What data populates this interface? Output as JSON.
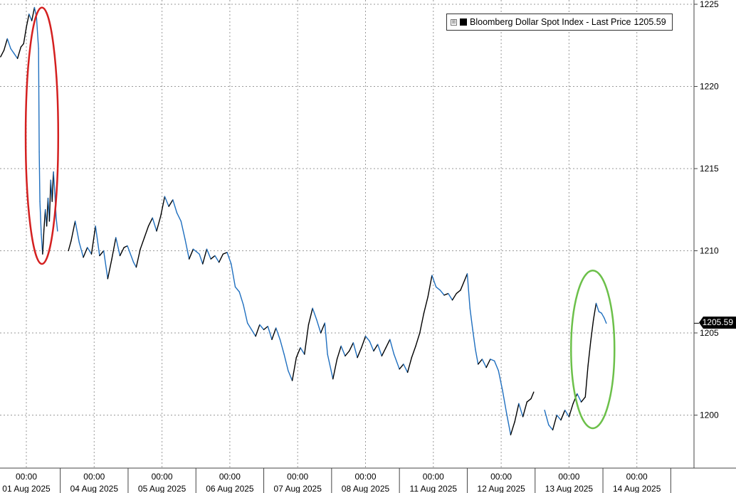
{
  "chart_data": {
    "type": "line",
    "title": "",
    "xlabel": "",
    "ylabel": "",
    "ylim": [
      1197.5,
      1225
    ],
    "y_ticks": [
      1200,
      1205,
      1210,
      1215,
      1220,
      1225
    ],
    "grid": true,
    "legend_position": "top-right",
    "x_ticks": [
      {
        "time": "00:00",
        "date": "01 Aug 2025"
      },
      {
        "time": "00:00",
        "date": "04 Aug 2025"
      },
      {
        "time": "00:00",
        "date": "05 Aug 2025"
      },
      {
        "time": "00:00",
        "date": "06 Aug 2025"
      },
      {
        "time": "00:00",
        "date": "07 Aug 2025"
      },
      {
        "time": "00:00",
        "date": "08 Aug 2025"
      },
      {
        "time": "00:00",
        "date": "11 Aug 2025"
      },
      {
        "time": "00:00",
        "date": "12 Aug 2025"
      },
      {
        "time": "00:00",
        "date": "13 Aug 2025"
      },
      {
        "time": "00:00",
        "date": "14 Aug 2025"
      }
    ],
    "series": [
      {
        "name": "Bloomberg Dollar Spot Index",
        "legend_label": "Bloomberg Dollar Spot Index - Last Price",
        "last_value": "1205.59",
        "color": "#000000",
        "down_color": "#1f6fbf",
        "points": [
          [
            -0.38,
            1221.8
          ],
          [
            -0.33,
            1222.2
          ],
          [
            -0.28,
            1222.9
          ],
          [
            -0.23,
            1222.3
          ],
          [
            -0.18,
            1222.0
          ],
          [
            -0.13,
            1221.7
          ],
          [
            -0.08,
            1222.4
          ],
          [
            -0.04,
            1222.6
          ],
          [
            0.0,
            1223.6
          ],
          [
            0.04,
            1224.4
          ],
          [
            0.08,
            1224.0
          ],
          [
            0.12,
            1224.8
          ],
          [
            0.15,
            1224.2
          ],
          [
            0.18,
            1222.3
          ],
          [
            0.19,
            1216.0
          ],
          [
            0.2,
            1213.0
          ],
          [
            0.22,
            1211.0
          ],
          [
            0.24,
            1209.8
          ],
          [
            0.26,
            1211.3
          ],
          [
            0.28,
            1212.5
          ],
          [
            0.3,
            1211.5
          ],
          [
            0.32,
            1213.2
          ],
          [
            0.34,
            1211.8
          ],
          [
            0.36,
            1214.3
          ],
          [
            0.38,
            1213.0
          ],
          [
            0.4,
            1214.8
          ],
          [
            0.42,
            1213.5
          ],
          [
            0.44,
            1212.0
          ],
          [
            0.46,
            1211.2
          ],
          [
            0.62,
            1210.0
          ],
          [
            0.66,
            1210.6
          ],
          [
            0.72,
            1211.8
          ],
          [
            0.78,
            1210.5
          ],
          [
            0.84,
            1209.6
          ],
          [
            0.9,
            1210.2
          ],
          [
            0.96,
            1209.8
          ],
          [
            1.02,
            1211.5
          ],
          [
            1.08,
            1209.7
          ],
          [
            1.14,
            1210.0
          ],
          [
            1.2,
            1208.3
          ],
          [
            1.26,
            1209.5
          ],
          [
            1.32,
            1210.8
          ],
          [
            1.38,
            1209.7
          ],
          [
            1.44,
            1210.2
          ],
          [
            1.49,
            1210.3
          ],
          [
            1.58,
            1209.3
          ],
          [
            1.62,
            1209.0
          ],
          [
            1.68,
            1210.1
          ],
          [
            1.74,
            1210.8
          ],
          [
            1.8,
            1211.5
          ],
          [
            1.86,
            1212.0
          ],
          [
            1.92,
            1211.2
          ],
          [
            1.98,
            1212.1
          ],
          [
            2.04,
            1213.3
          ],
          [
            2.1,
            1212.7
          ],
          [
            2.16,
            1213.1
          ],
          [
            2.22,
            1212.3
          ],
          [
            2.28,
            1211.8
          ],
          [
            2.34,
            1210.7
          ],
          [
            2.4,
            1209.5
          ],
          [
            2.46,
            1210.1
          ],
          [
            2.55,
            1209.8
          ],
          [
            2.6,
            1209.2
          ],
          [
            2.66,
            1210.1
          ],
          [
            2.72,
            1209.5
          ],
          [
            2.78,
            1209.7
          ],
          [
            2.84,
            1209.3
          ],
          [
            2.9,
            1209.8
          ],
          [
            2.96,
            1209.9
          ],
          [
            3.02,
            1209.2
          ],
          [
            3.08,
            1207.8
          ],
          [
            3.14,
            1207.5
          ],
          [
            3.2,
            1206.7
          ],
          [
            3.26,
            1205.6
          ],
          [
            3.32,
            1205.2
          ],
          [
            3.38,
            1204.8
          ],
          [
            3.44,
            1205.5
          ],
          [
            3.5,
            1205.2
          ],
          [
            3.56,
            1205.4
          ],
          [
            3.62,
            1204.6
          ],
          [
            3.68,
            1205.3
          ],
          [
            3.74,
            1204.6
          ],
          [
            3.8,
            1203.7
          ],
          [
            3.86,
            1202.7
          ],
          [
            3.92,
            1202.1
          ],
          [
            3.98,
            1203.5
          ],
          [
            4.04,
            1204.1
          ],
          [
            4.1,
            1203.7
          ],
          [
            4.16,
            1205.5
          ],
          [
            4.22,
            1206.5
          ],
          [
            4.28,
            1205.8
          ],
          [
            4.34,
            1205.0
          ],
          [
            4.4,
            1205.6
          ],
          [
            4.44,
            1203.7
          ],
          [
            4.52,
            1202.2
          ],
          [
            4.58,
            1203.4
          ],
          [
            4.64,
            1204.2
          ],
          [
            4.7,
            1203.6
          ],
          [
            4.76,
            1203.9
          ],
          [
            4.82,
            1204.4
          ],
          [
            4.88,
            1203.5
          ],
          [
            4.94,
            1204.1
          ],
          [
            5.0,
            1204.8
          ],
          [
            5.06,
            1204.5
          ],
          [
            5.12,
            1203.9
          ],
          [
            5.18,
            1204.3
          ],
          [
            5.24,
            1203.6
          ],
          [
            5.3,
            1204.1
          ],
          [
            5.36,
            1204.6
          ],
          [
            5.42,
            1203.7
          ],
          [
            5.5,
            1202.8
          ],
          [
            5.56,
            1203.1
          ],
          [
            5.62,
            1202.6
          ],
          [
            5.68,
            1203.5
          ],
          [
            5.74,
            1204.2
          ],
          [
            5.8,
            1205.0
          ],
          [
            5.86,
            1206.2
          ],
          [
            5.92,
            1207.2
          ],
          [
            5.98,
            1208.5
          ],
          [
            6.04,
            1207.8
          ],
          [
            6.1,
            1207.6
          ],
          [
            6.16,
            1207.3
          ],
          [
            6.22,
            1207.4
          ],
          [
            6.28,
            1207.0
          ],
          [
            6.34,
            1207.4
          ],
          [
            6.4,
            1207.6
          ],
          [
            6.46,
            1208.2
          ],
          [
            6.5,
            1208.6
          ],
          [
            6.54,
            1206.5
          ],
          [
            6.58,
            1205.2
          ],
          [
            6.62,
            1204.0
          ],
          [
            6.66,
            1203.1
          ],
          [
            6.72,
            1203.4
          ],
          [
            6.78,
            1202.9
          ],
          [
            6.84,
            1203.4
          ],
          [
            6.9,
            1203.3
          ],
          [
            6.96,
            1202.7
          ],
          [
            7.02,
            1201.5
          ],
          [
            7.08,
            1200.1
          ],
          [
            7.14,
            1198.8
          ],
          [
            7.2,
            1199.6
          ],
          [
            7.26,
            1200.7
          ],
          [
            7.32,
            1199.9
          ],
          [
            7.38,
            1200.8
          ],
          [
            7.44,
            1201.0
          ],
          [
            7.48,
            1201.4
          ],
          [
            7.64,
            1200.3
          ],
          [
            7.7,
            1199.4
          ],
          [
            7.76,
            1199.1
          ],
          [
            7.82,
            1200.0
          ],
          [
            7.88,
            1199.7
          ],
          [
            7.94,
            1200.3
          ],
          [
            8.0,
            1199.9
          ],
          [
            8.06,
            1200.7
          ],
          [
            8.12,
            1201.3
          ],
          [
            8.18,
            1200.8
          ],
          [
            8.24,
            1201.1
          ],
          [
            8.28,
            1203.0
          ],
          [
            8.32,
            1204.5
          ],
          [
            8.36,
            1205.8
          ],
          [
            8.4,
            1206.8
          ],
          [
            8.44,
            1206.3
          ],
          [
            8.48,
            1206.2
          ],
          [
            8.52,
            1205.9
          ],
          [
            8.55,
            1205.59
          ]
        ]
      }
    ],
    "annotations": [
      {
        "type": "ellipse",
        "color": "#d42020",
        "center": [
          0.23,
          1217.0
        ],
        "radius_x": 0.24,
        "radius_y": 7.8
      },
      {
        "type": "ellipse",
        "color": "#6cc04a",
        "center": [
          8.35,
          1204.0
        ],
        "radius_x": 0.32,
        "radius_y": 4.8
      }
    ]
  },
  "legend": {
    "expand_icon": "⊞",
    "label": "Bloomberg Dollar Spot Index - Last Price",
    "value": "1205.59"
  },
  "last_price_tag": "1205.59"
}
